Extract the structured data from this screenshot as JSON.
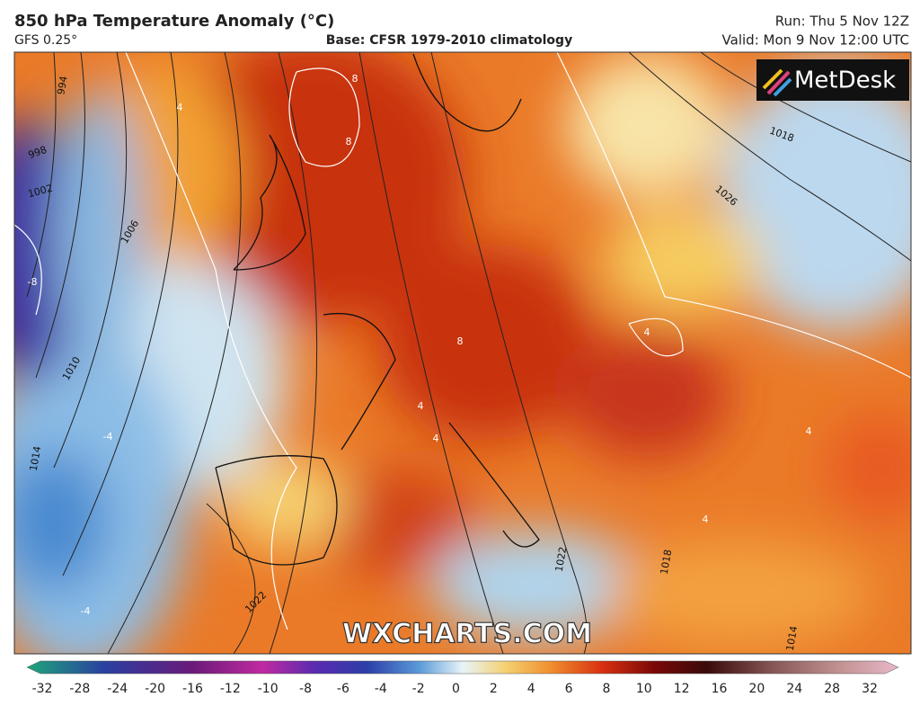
{
  "header": {
    "title": "850 hPa Temperature Anomaly (°C)",
    "model": "GFS 0.25°",
    "base": "Base: CFSR 1979-2010 climatology",
    "run": "Run: Thu 5 Nov 12Z",
    "valid": "Valid: Mon 9 Nov 12:00 UTC"
  },
  "logo": "MetDesk",
  "watermark": "WXCHARTS.COM",
  "map": {
    "isobar_labels": [
      "994",
      "998",
      "1002",
      "1006",
      "1010",
      "1014",
      "1018",
      "1026",
      "1022",
      "1018",
      "1022",
      "1014"
    ],
    "anomaly_labels": [
      "8",
      "8",
      "-8",
      "4",
      "8",
      "4",
      "4",
      "4",
      "4",
      "4",
      "-4",
      "-4"
    ]
  },
  "colorbar": {
    "ticks": [
      -32,
      -28,
      -24,
      -20,
      -16,
      -12,
      -10,
      -8,
      -6,
      -4,
      -2,
      0,
      2,
      4,
      6,
      8,
      10,
      12,
      16,
      20,
      24,
      28,
      32
    ]
  }
}
